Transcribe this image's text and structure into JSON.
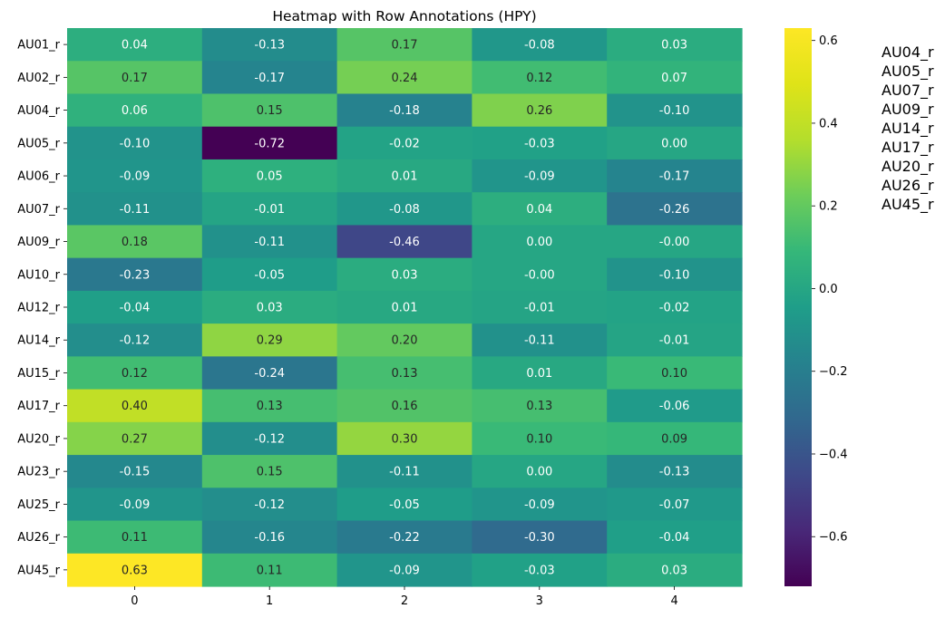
{
  "chart_data": {
    "type": "heatmap",
    "title": "Heatmap with Row Annotations (HPY)",
    "colormap": "viridis",
    "row_labels": [
      "AU01_r",
      "AU02_r",
      "AU04_r",
      "AU05_r",
      "AU06_r",
      "AU07_r",
      "AU09_r",
      "AU10_r",
      "AU12_r",
      "AU14_r",
      "AU15_r",
      "AU17_r",
      "AU20_r",
      "AU23_r",
      "AU25_r",
      "AU26_r",
      "AU45_r"
    ],
    "col_labels": [
      "0",
      "1",
      "2",
      "3",
      "4"
    ],
    "values": [
      [
        0.04,
        -0.13,
        0.17,
        -0.08,
        0.03
      ],
      [
        0.17,
        -0.17,
        0.24,
        0.12,
        0.07
      ],
      [
        0.06,
        0.15,
        -0.18,
        0.26,
        -0.1
      ],
      [
        -0.1,
        -0.72,
        -0.02,
        -0.03,
        0.0
      ],
      [
        -0.09,
        0.05,
        0.01,
        -0.09,
        -0.17
      ],
      [
        -0.11,
        -0.01,
        -0.08,
        0.04,
        -0.26
      ],
      [
        0.18,
        -0.11,
        -0.46,
        0.0,
        -0.0
      ],
      [
        -0.23,
        -0.05,
        0.03,
        -0.0,
        -0.1
      ],
      [
        -0.04,
        0.03,
        0.01,
        -0.01,
        -0.02
      ],
      [
        -0.12,
        0.29,
        0.2,
        -0.11,
        -0.01
      ],
      [
        0.12,
        -0.24,
        0.13,
        0.01,
        0.1
      ],
      [
        0.4,
        0.13,
        0.16,
        0.13,
        -0.06
      ],
      [
        0.27,
        -0.12,
        0.3,
        0.1,
        0.09
      ],
      [
        -0.15,
        0.15,
        -0.11,
        0.0,
        -0.13
      ],
      [
        -0.09,
        -0.12,
        -0.05,
        -0.09,
        -0.07
      ],
      [
        0.11,
        -0.16,
        -0.22,
        -0.3,
        -0.04
      ],
      [
        0.63,
        0.11,
        -0.09,
        -0.03,
        0.03
      ]
    ],
    "value_labels": [
      [
        "0.04",
        "-0.13",
        "0.17",
        "-0.08",
        "0.03"
      ],
      [
        "0.17",
        "-0.17",
        "0.24",
        "0.12",
        "0.07"
      ],
      [
        "0.06",
        "0.15",
        "-0.18",
        "0.26",
        "-0.10"
      ],
      [
        "-0.10",
        "-0.72",
        "-0.02",
        "-0.03",
        "0.00"
      ],
      [
        "-0.09",
        "0.05",
        "0.01",
        "-0.09",
        "-0.17"
      ],
      [
        "-0.11",
        "-0.01",
        "-0.08",
        "0.04",
        "-0.26"
      ],
      [
        "0.18",
        "-0.11",
        "-0.46",
        "0.00",
        "-0.00"
      ],
      [
        "-0.23",
        "-0.05",
        "0.03",
        "-0.00",
        "-0.10"
      ],
      [
        "-0.04",
        "0.03",
        "0.01",
        "-0.01",
        "-0.02"
      ],
      [
        "-0.12",
        "0.29",
        "0.20",
        "-0.11",
        "-0.01"
      ],
      [
        "0.12",
        "-0.24",
        "0.13",
        "0.01",
        "0.10"
      ],
      [
        "0.40",
        "0.13",
        "0.16",
        "0.13",
        "-0.06"
      ],
      [
        "0.27",
        "-0.12",
        "0.30",
        "0.10",
        "0.09"
      ],
      [
        "-0.15",
        "0.15",
        "-0.11",
        "0.00",
        "-0.13"
      ],
      [
        "-0.09",
        "-0.12",
        "-0.05",
        "-0.09",
        "-0.07"
      ],
      [
        "0.11",
        "-0.16",
        "-0.22",
        "-0.30",
        "-0.04"
      ],
      [
        "0.63",
        "0.11",
        "-0.09",
        "-0.03",
        "0.03"
      ]
    ],
    "colorbar": {
      "range": [
        -0.72,
        0.63
      ],
      "ticks": [
        0.6,
        0.4,
        0.2,
        0.0,
        -0.2,
        -0.4,
        -0.6
      ],
      "tick_labels": [
        "0.6",
        "0.4",
        "0.2",
        "0.0",
        "−0.2",
        "−0.4",
        "−0.6"
      ]
    },
    "annotation_list": [
      "AU04_r",
      "AU05_r",
      "AU07_r",
      "AU09_r",
      "AU14_r",
      "AU17_r",
      "AU20_r",
      "AU26_r",
      "AU45_r"
    ]
  }
}
